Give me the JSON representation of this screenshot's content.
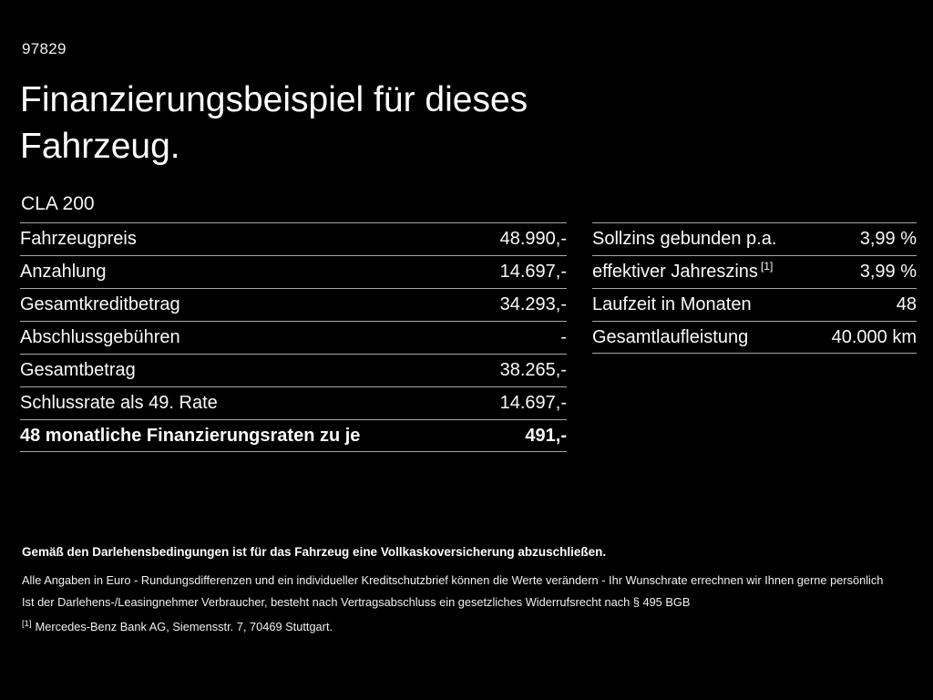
{
  "meta": {
    "vehicle_id": "97829",
    "title": "Finanzierungsbeispiel für dieses Fahrzeug.",
    "model": "CLA 200"
  },
  "finance_table": {
    "rows": [
      {
        "label": "Fahrzeugpreis",
        "value": "48.990,-"
      },
      {
        "label": "Anzahlung",
        "value": "14.697,-"
      },
      {
        "label": "Gesamtkreditbetrag",
        "value": "34.293,-"
      },
      {
        "label": "Abschlussgebühren",
        "value": "-"
      },
      {
        "label": "Gesamtbetrag",
        "value": "38.265,-"
      },
      {
        "label": "Schlussrate als 49. Rate",
        "value": "14.697,-"
      },
      {
        "label": "48 monatliche Finanzierungsraten zu je",
        "value": "491,-"
      }
    ]
  },
  "terms_table": {
    "rows": [
      {
        "label": "Sollzins gebunden p.a.",
        "value": "3,99 %"
      },
      {
        "label": "effektiver Jahreszins",
        "footnote": "[1]",
        "value": "3,99 %"
      },
      {
        "label": "Laufzeit in Monaten",
        "value": "48"
      },
      {
        "label": "Gesamtlaufleistung",
        "value": "40.000 km"
      }
    ]
  },
  "footer": {
    "bold_note": "Gemäß den Darlehensbedingungen ist für das Fahrzeug eine Vollkaskoversicherung abzuschließen.",
    "note1": "Alle Angaben in Euro - Rundungsdifferenzen und ein individueller Kreditschutzbrief können die Werte verändern - Ihr Wunschrate errechnen wir Ihnen gerne persönlich",
    "note2": "Ist der Darlehens-/Leasingnehmer Verbraucher, besteht nach Vertragsabschluss ein gesetzliches Widerrufsrecht nach § 495 BGB",
    "footnote_marker": "[1]",
    "footnote_text": "Mercedes-Benz Bank AG, Siemensstr. 7, 70469 Stuttgart."
  },
  "colors": {
    "background": "#000000",
    "text": "#ffffff",
    "divider": "#a8a8a8"
  }
}
